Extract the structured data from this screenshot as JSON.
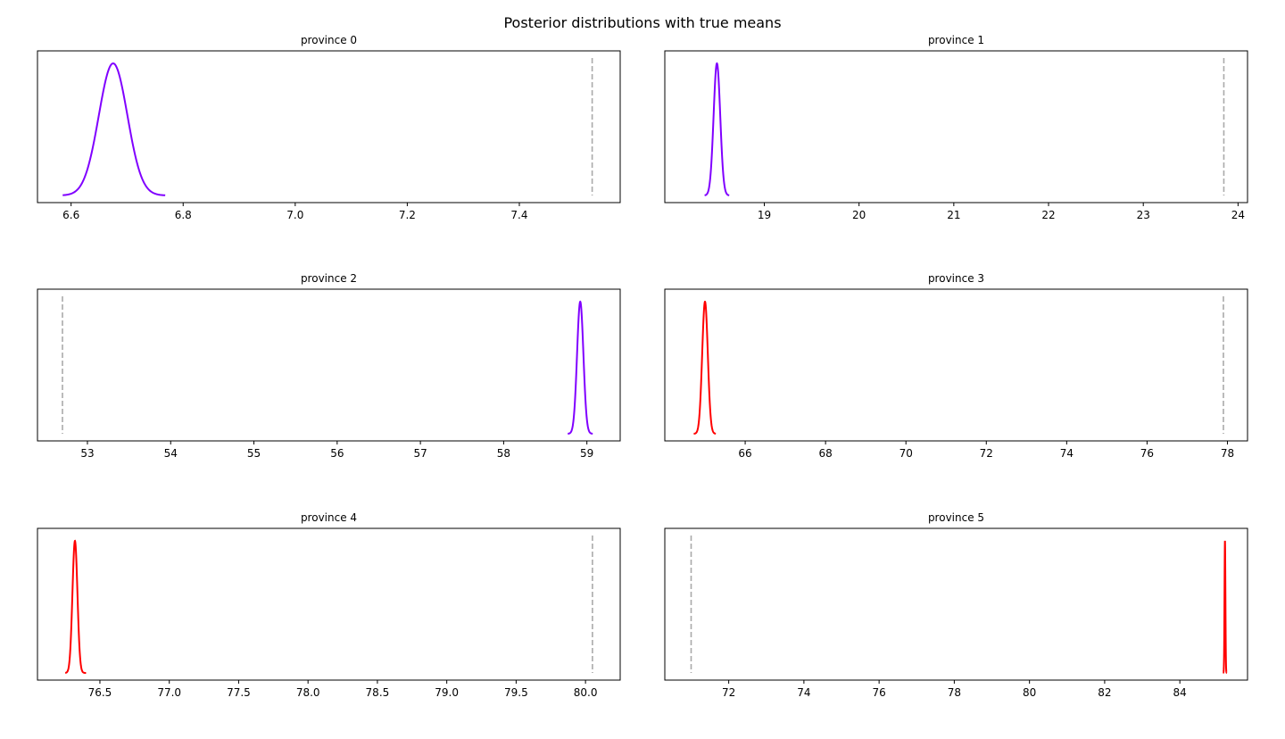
{
  "figure": {
    "title": "Posterior distributions with true means"
  },
  "chart_data": [
    {
      "type": "line",
      "title": "province 0",
      "xlim": [
        6.54,
        7.58
      ],
      "xticks": [
        6.6,
        6.8,
        7.0,
        7.2,
        7.4
      ],
      "xtick_labels": [
        "6.6",
        "6.8",
        "7.0",
        "7.2",
        "7.4"
      ],
      "yticks": false,
      "posterior": {
        "mean": 6.675,
        "sd": 0.0255,
        "x_min": 6.585,
        "x_max": 6.768,
        "color": "#8000ff"
      },
      "true_mean": {
        "value": 7.53,
        "color": "#aaaaaa",
        "style": "dashed"
      }
    },
    {
      "type": "line",
      "title": "province 1",
      "xlim": [
        17.95,
        24.1
      ],
      "xticks": [
        19,
        20,
        21,
        22,
        23,
        24
      ],
      "xtick_labels": [
        "19",
        "20",
        "21",
        "22",
        "23",
        "24"
      ],
      "yticks": false,
      "posterior": {
        "mean": 18.5,
        "sd": 0.035,
        "x_min": 18.37,
        "x_max": 18.63,
        "color": "#8000ff"
      },
      "true_mean": {
        "value": 23.85,
        "color": "#aaaaaa",
        "style": "dashed"
      }
    },
    {
      "type": "line",
      "title": "province 2",
      "xlim": [
        52.4,
        59.4
      ],
      "xticks": [
        53,
        54,
        55,
        56,
        57,
        58,
        59
      ],
      "xtick_labels": [
        "53",
        "54",
        "55",
        "56",
        "57",
        "58",
        "59"
      ],
      "yticks": false,
      "posterior": {
        "mean": 58.92,
        "sd": 0.038,
        "x_min": 58.77,
        "x_max": 59.07,
        "color": "#8000ff"
      },
      "true_mean": {
        "value": 52.7,
        "color": "#aaaaaa",
        "style": "dashed"
      }
    },
    {
      "type": "line",
      "title": "province 3",
      "xlim": [
        64.0,
        78.5
      ],
      "xticks": [
        66,
        68,
        70,
        72,
        74,
        76,
        78
      ],
      "xtick_labels": [
        "66",
        "68",
        "70",
        "72",
        "74",
        "76",
        "78"
      ],
      "yticks": false,
      "posterior": {
        "mean": 65.0,
        "sd": 0.07,
        "x_min": 64.72,
        "x_max": 65.27,
        "color": "#ff0000"
      },
      "true_mean": {
        "value": 77.9,
        "color": "#aaaaaa",
        "style": "dashed"
      }
    },
    {
      "type": "line",
      "title": "province 4",
      "xlim": [
        76.05,
        80.25
      ],
      "xticks": [
        76.5,
        77.0,
        77.5,
        78.0,
        78.5,
        79.0,
        79.5,
        80.0
      ],
      "xtick_labels": [
        "76.5",
        "77.0",
        "77.5",
        "78.0",
        "78.5",
        "79.0",
        "79.5",
        "80.0"
      ],
      "yticks": false,
      "posterior": {
        "mean": 76.32,
        "sd": 0.018,
        "x_min": 76.25,
        "x_max": 76.4,
        "color": "#ff0000"
      },
      "true_mean": {
        "value": 80.05,
        "color": "#aaaaaa",
        "style": "dashed"
      }
    },
    {
      "type": "line",
      "title": "province 5",
      "xlim": [
        70.3,
        85.8
      ],
      "xticks": [
        72,
        74,
        76,
        78,
        80,
        82,
        84
      ],
      "xtick_labels": [
        "72",
        "74",
        "76",
        "78",
        "80",
        "82",
        "84"
      ],
      "yticks": false,
      "posterior": {
        "mean": 85.2,
        "sd": 0.012,
        "x_min": 85.15,
        "x_max": 85.25,
        "color": "#ff0000"
      },
      "true_mean": {
        "value": 71.0,
        "color": "#aaaaaa",
        "style": "dashed"
      }
    }
  ]
}
